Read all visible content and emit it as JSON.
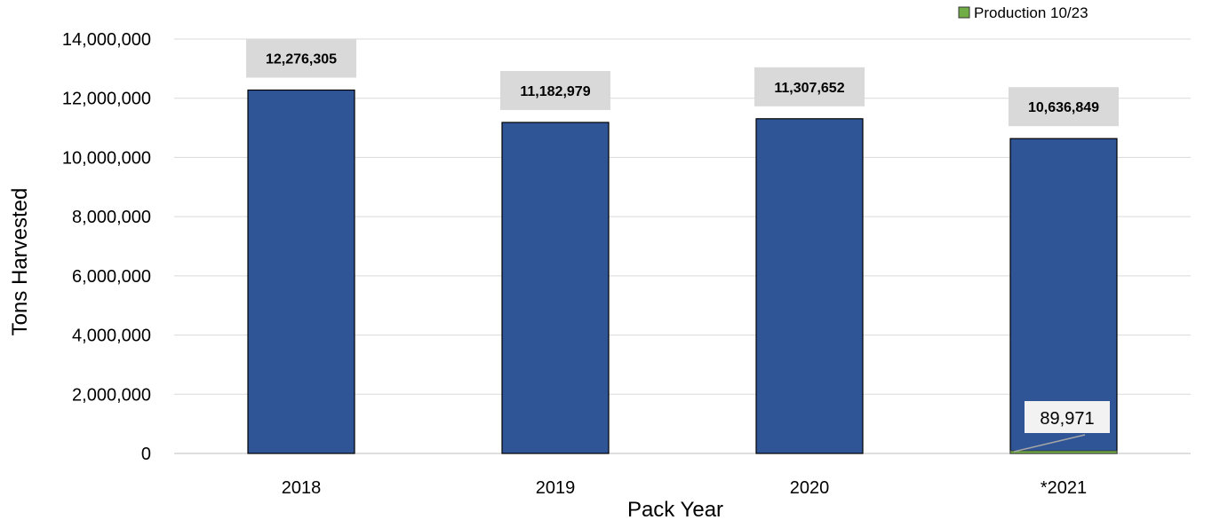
{
  "chart_data": {
    "type": "bar",
    "xlabel": "Pack Year",
    "ylabel": "Tons Harvested",
    "ylim": [
      0,
      14000000
    ],
    "yticks": [
      0,
      2000000,
      4000000,
      6000000,
      8000000,
      10000000,
      12000000,
      14000000
    ],
    "ytick_labels": [
      "0",
      "2,000,000",
      "4,000,000",
      "6,000,000",
      "8,000,000",
      "10,000,000",
      "12,000,000",
      "14,000,000"
    ],
    "grid": true,
    "legend_position": "top-right",
    "categories": [
      "2018",
      "2019",
      "2020",
      "*2021"
    ],
    "series": [
      {
        "values": [
          12276305,
          11182979,
          11307652,
          10636849
        ],
        "color": "#2f5597",
        "data_labels": [
          "12,276,305",
          "11,182,979",
          "11,307,652",
          "10,636,849"
        ]
      },
      {
        "name": "Production 10/23",
        "values": [
          null,
          null,
          null,
          89971
        ],
        "color": "#70ad47",
        "data_labels": [
          "",
          "",
          "",
          "89,971"
        ]
      }
    ]
  }
}
